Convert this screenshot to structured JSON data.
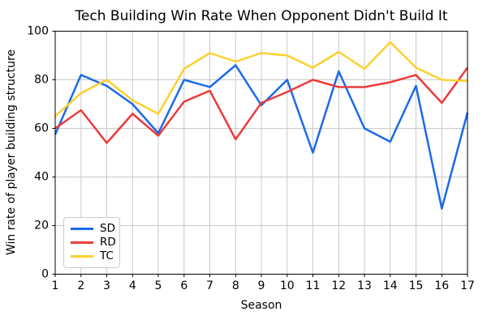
{
  "chart_data": {
    "type": "line",
    "title": "Tech Building Win Rate When Opponent Didn't Build It",
    "xlabel": "Season",
    "ylabel": "Win rate of player building structure",
    "x": [
      1,
      2,
      3,
      4,
      5,
      6,
      7,
      8,
      9,
      10,
      11,
      12,
      13,
      14,
      15,
      16,
      17
    ],
    "series": [
      {
        "name": "SD",
        "color": "#1b6aeb",
        "values": [
          57.5,
          82,
          77.5,
          70,
          58,
          80,
          77,
          86,
          69.5,
          80,
          50,
          83.5,
          60,
          54.5,
          77.5,
          27,
          66.5
        ]
      },
      {
        "name": "RD",
        "color": "#ec3b3b",
        "values": [
          60,
          67.5,
          54,
          66,
          57,
          71,
          75.5,
          55.5,
          70.5,
          75,
          80,
          77,
          77,
          79,
          82,
          70.5,
          85
        ]
      },
      {
        "name": "TC",
        "color": "#fcd02f",
        "values": [
          65,
          74.5,
          80,
          71.5,
          66,
          84.5,
          91,
          87.5,
          91,
          90,
          85,
          91.5,
          84.5,
          95.5,
          85,
          80,
          79.5
        ]
      }
    ],
    "xlim": [
      1,
      17
    ],
    "ylim": [
      0,
      100
    ],
    "xticks": [
      1,
      2,
      3,
      4,
      5,
      6,
      7,
      8,
      9,
      10,
      11,
      12,
      13,
      14,
      15,
      16,
      17
    ],
    "yticks": [
      0,
      20,
      40,
      60,
      80,
      100
    ],
    "grid": true,
    "legend_position": "lower left"
  }
}
